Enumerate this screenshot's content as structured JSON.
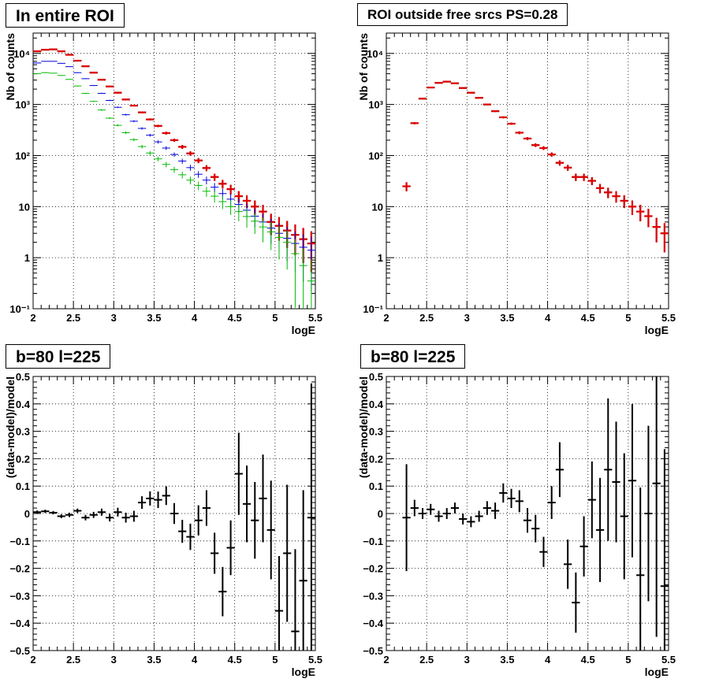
{
  "colors": {
    "data": "#000000",
    "model": "#e00000",
    "blue": "#0000dd",
    "green": "#00bb00",
    "grid": "#000000"
  },
  "chart_data": [
    {
      "type": "scatter",
      "title": "In entire ROI",
      "xlabel": "logE",
      "ylabel": "Nb of counts",
      "xlim": [
        2,
        5.5
      ],
      "ylim": [
        0.1,
        25000
      ],
      "yscale": "log",
      "grid": true,
      "xticks": [
        "2",
        "2.5",
        "3",
        "3.5",
        "4",
        "4.5",
        "5",
        "5.5"
      ],
      "yticks": [
        "10⁻¹",
        "1",
        "10",
        "10²",
        "10³",
        "10⁴"
      ],
      "x": [
        2.05,
        2.15,
        2.25,
        2.35,
        2.45,
        2.55,
        2.65,
        2.75,
        2.85,
        2.95,
        3.05,
        3.15,
        3.25,
        3.35,
        3.45,
        3.55,
        3.65,
        3.75,
        3.85,
        3.95,
        4.05,
        4.15,
        4.25,
        4.35,
        4.45,
        4.55,
        4.65,
        4.75,
        4.85,
        4.95,
        5.05,
        5.15,
        5.25,
        5.35,
        5.45
      ],
      "series": [
        {
          "key": "data",
          "values": [
            11000,
            11800,
            12000,
            11000,
            9400,
            7200,
            5600,
            4200,
            3050,
            2250,
            1700,
            1250,
            950,
            700,
            510,
            380,
            275,
            200,
            148,
            110,
            80,
            57,
            38,
            28,
            22,
            16,
            13,
            10,
            8,
            5,
            4.2,
            3.4,
            2.8,
            2.3,
            1.9
          ],
          "errors": true
        },
        {
          "key": "model",
          "values": [
            11000,
            11800,
            12000,
            11000,
            9400,
            7200,
            5600,
            4200,
            3050,
            2250,
            1700,
            1250,
            950,
            700,
            510,
            380,
            275,
            200,
            148,
            110,
            80,
            57,
            38,
            28,
            22,
            16,
            13,
            10,
            8,
            5,
            4.2,
            3.4,
            2.8,
            2.3,
            1.9
          ],
          "errors": true
        },
        {
          "key": "blue",
          "values": [
            6500,
            7000,
            7000,
            6400,
            5500,
            4200,
            3200,
            2350,
            1650,
            1200,
            880,
            630,
            470,
            340,
            250,
            185,
            140,
            105,
            78,
            58,
            43,
            33,
            24,
            18,
            14,
            11,
            8.5,
            6.5,
            5,
            3.8,
            3,
            2.4,
            1.9,
            1.6,
            1.4
          ],
          "errors": true
        },
        {
          "key": "green",
          "values": [
            4000,
            4200,
            4100,
            3700,
            3100,
            2300,
            1650,
            1150,
            780,
            540,
            390,
            280,
            205,
            150,
            112,
            86,
            67,
            53,
            42,
            33,
            26,
            20,
            16,
            12.5,
            10,
            8,
            6.4,
            5.2,
            4,
            3.2,
            2.5,
            2,
            1.2,
            0.7,
            0.35
          ],
          "errors": true
        }
      ]
    },
    {
      "type": "scatter",
      "title": "ROI outside free srcs PS=0.28",
      "xlabel": "logE",
      "ylabel": "Nb of counts",
      "xlim": [
        2,
        5.5
      ],
      "ylim": [
        0.1,
        25000
      ],
      "yscale": "log",
      "grid": true,
      "xticks": [
        "2",
        "2.5",
        "3",
        "3.5",
        "4",
        "4.5",
        "5",
        "5.5"
      ],
      "yticks": [
        "10⁻¹",
        "1",
        "10",
        "10²",
        "10³",
        "10⁴"
      ],
      "x": [
        2.25,
        2.35,
        2.45,
        2.55,
        2.65,
        2.75,
        2.85,
        2.95,
        3.05,
        3.15,
        3.25,
        3.35,
        3.45,
        3.55,
        3.65,
        3.75,
        3.85,
        3.95,
        4.05,
        4.15,
        4.25,
        4.35,
        4.45,
        4.55,
        4.65,
        4.75,
        4.85,
        4.95,
        5.05,
        5.15,
        5.25,
        5.35,
        5.45
      ],
      "series": [
        {
          "key": "data",
          "values": [
            25,
            430,
            1300,
            2150,
            2650,
            2800,
            2600,
            2100,
            1700,
            1350,
            1000,
            740,
            560,
            420,
            280,
            215,
            160,
            140,
            105,
            72,
            58,
            38,
            38,
            32,
            23,
            19,
            16,
            13,
            10,
            8,
            6.5,
            4,
            3
          ],
          "errors": true
        },
        {
          "key": "model",
          "values": [
            25,
            430,
            1300,
            2150,
            2650,
            2800,
            2600,
            2100,
            1700,
            1350,
            1000,
            740,
            560,
            420,
            280,
            215,
            160,
            140,
            105,
            72,
            58,
            38,
            38,
            32,
            23,
            19,
            16,
            13,
            10,
            8,
            6.5,
            4,
            3
          ],
          "errors": true
        }
      ]
    },
    {
      "type": "scatter",
      "title": "b=80 l=225",
      "xlabel": "logE",
      "ylabel": "(data-model)/model",
      "xlim": [
        2,
        5.5
      ],
      "ylim": [
        -0.5,
        0.5
      ],
      "grid": true,
      "xticks": [
        "2",
        "2.5",
        "3",
        "3.5",
        "4",
        "4.5",
        "5",
        "5.5"
      ],
      "yticks": [
        "−0.5",
        "−0.4",
        "−0.3",
        "−0.2",
        "−0.1",
        "0",
        "0.1",
        "0.2",
        "0.3",
        "0.4",
        "0.5"
      ],
      "x": [
        2.05,
        2.15,
        2.25,
        2.35,
        2.45,
        2.55,
        2.65,
        2.75,
        2.85,
        2.95,
        3.05,
        3.15,
        3.25,
        3.35,
        3.45,
        3.55,
        3.65,
        3.75,
        3.85,
        3.95,
        4.05,
        4.15,
        4.25,
        4.35,
        4.45,
        4.55,
        4.65,
        4.75,
        4.85,
        4.95,
        5.05,
        5.15,
        5.25,
        5.35,
        5.45
      ],
      "series": [
        {
          "key": "data",
          "values": [
            0.005,
            0.008,
            0.003,
            -0.01,
            -0.005,
            0.01,
            -0.015,
            -0.005,
            0.005,
            -0.015,
            0.005,
            -0.015,
            -0.01,
            0.04,
            0.055,
            0.05,
            0.065,
            0,
            -0.065,
            -0.085,
            -0.025,
            0.02,
            -0.145,
            -0.285,
            -0.125,
            0.145,
            0.035,
            -0.025,
            0.055,
            -0.06,
            -0.355,
            -0.145,
            -0.43,
            -0.245,
            -0.015
          ],
          "errors": [
            0.006,
            0.006,
            0.006,
            0.007,
            0.008,
            0.008,
            0.01,
            0.011,
            0.013,
            0.014,
            0.016,
            0.018,
            0.02,
            0.023,
            0.026,
            0.03,
            0.034,
            0.038,
            0.042,
            0.048,
            0.055,
            0.065,
            0.075,
            0.09,
            0.1,
            0.15,
            0.14,
            0.14,
            0.16,
            0.18,
            0.2,
            0.25,
            0.3,
            0.33,
            0.49
          ]
        }
      ]
    },
    {
      "type": "scatter",
      "title": "b=80 l=225",
      "xlabel": "logE",
      "ylabel": "(data-model)/model",
      "xlim": [
        2,
        5.5
      ],
      "ylim": [
        -0.5,
        0.5
      ],
      "grid": true,
      "xticks": [
        "2",
        "2.5",
        "3",
        "3.5",
        "4",
        "4.5",
        "5",
        "5.5"
      ],
      "yticks": [
        "−0.5",
        "−0.4",
        "−0.3",
        "−0.2",
        "−0.1",
        "0",
        "0.1",
        "0.2",
        "0.3",
        "0.4",
        "0.5"
      ],
      "x": [
        2.25,
        2.35,
        2.45,
        2.55,
        2.65,
        2.75,
        2.85,
        2.95,
        3.05,
        3.15,
        3.25,
        3.35,
        3.45,
        3.55,
        3.65,
        3.75,
        3.85,
        3.95,
        4.05,
        4.15,
        4.25,
        4.35,
        4.45,
        4.55,
        4.65,
        4.75,
        4.85,
        4.95,
        5.05,
        5.15,
        5.25,
        5.35,
        5.45
      ],
      "series": [
        {
          "key": "data",
          "values": [
            -0.015,
            0.02,
            0,
            0.015,
            -0.01,
            0,
            0.02,
            -0.02,
            -0.03,
            -0.01,
            0.02,
            0.01,
            0.075,
            0.055,
            0.045,
            -0.025,
            -0.055,
            -0.14,
            0.04,
            0.16,
            -0.185,
            -0.325,
            -0.12,
            0.05,
            -0.06,
            0.16,
            0.115,
            -0.01,
            0.12,
            -0.225,
            0,
            0.11,
            -0.265
          ],
          "errors": [
            0.195,
            0.03,
            0.02,
            0.02,
            0.02,
            0.02,
            0.02,
            0.02,
            0.02,
            0.02,
            0.025,
            0.03,
            0.035,
            0.035,
            0.04,
            0.045,
            0.05,
            0.055,
            0.06,
            0.1,
            0.09,
            0.11,
            0.11,
            0.14,
            0.19,
            0.26,
            0.22,
            0.23,
            0.28,
            0.32,
            0.32,
            0.56,
            0.5
          ]
        }
      ]
    }
  ]
}
